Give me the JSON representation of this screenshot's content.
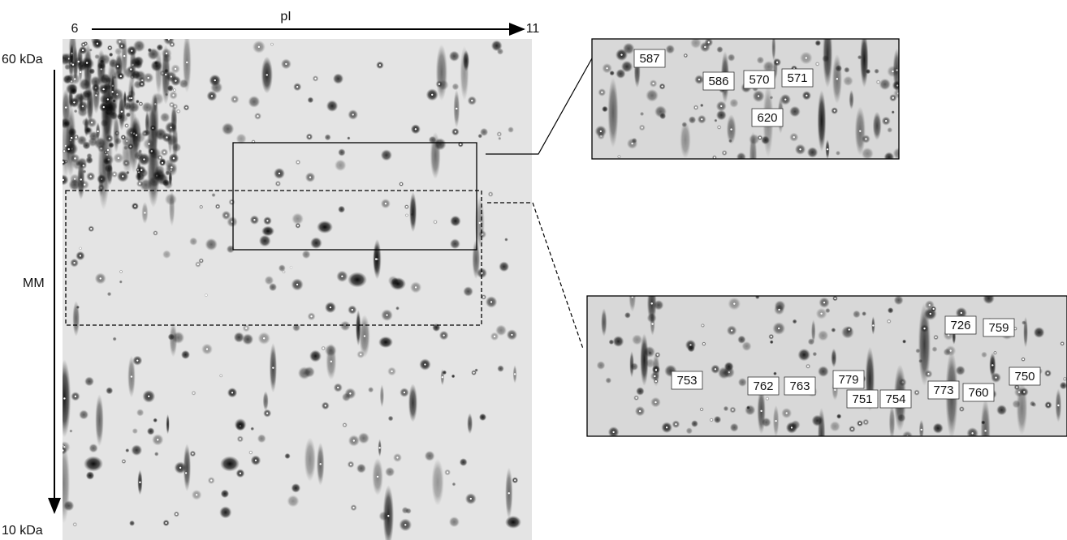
{
  "axes": {
    "x_label": "pI",
    "x_start": "6",
    "x_end": "11",
    "y_top": "60 kDa",
    "y_label": "MM",
    "y_bottom": "10 kDa"
  },
  "insets": [
    {
      "labels": [
        "587",
        "586",
        "570",
        "571",
        "620"
      ]
    },
    {
      "labels": [
        "726",
        "759",
        "753",
        "762",
        "763",
        "779",
        "751",
        "754",
        "773",
        "760",
        "750"
      ]
    }
  ]
}
